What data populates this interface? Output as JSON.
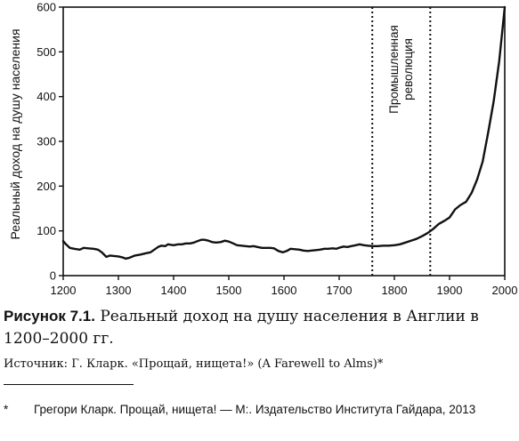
{
  "chart_data": {
    "type": "line",
    "title": "",
    "xlabel": "",
    "ylabel": "Реальный доход на душу населения",
    "xlim": [
      1200,
      2000
    ],
    "ylim": [
      0,
      600
    ],
    "xticks": [
      "1200",
      "1300",
      "1400",
      "1500",
      "1600",
      "1700",
      "1800",
      "1900",
      "2000"
    ],
    "yticks": [
      "0",
      "100",
      "200",
      "300",
      "400",
      "500",
      "600"
    ],
    "grid": false,
    "annotations": [
      {
        "text": "Промышленная революция",
        "x_start": 1760,
        "x_end": 1865
      }
    ],
    "series": [
      {
        "x": [
          1200,
          1205,
          1212,
          1220,
          1230,
          1237,
          1245,
          1255,
          1263,
          1270,
          1278,
          1285,
          1292,
          1300,
          1307,
          1313,
          1320,
          1330,
          1340,
          1350,
          1358,
          1365,
          1372,
          1378,
          1385,
          1390,
          1395,
          1400,
          1408,
          1415,
          1422,
          1430,
          1437,
          1443,
          1450,
          1456,
          1463,
          1470,
          1477,
          1485,
          1493,
          1500,
          1508,
          1515,
          1523,
          1530,
          1538,
          1545,
          1552,
          1560,
          1568,
          1575,
          1582,
          1590,
          1598,
          1605,
          1612,
          1620,
          1628,
          1635,
          1643,
          1650,
          1658,
          1665,
          1673,
          1680,
          1688,
          1695,
          1702,
          1708,
          1715,
          1722,
          1730,
          1737,
          1745,
          1752,
          1760,
          1770,
          1780,
          1790,
          1800,
          1810,
          1820,
          1830,
          1840,
          1850,
          1860,
          1870,
          1880,
          1890,
          1900,
          1910,
          1920,
          1930,
          1940,
          1950,
          1960,
          1970,
          1980,
          1990,
          2000
        ],
        "values": [
          77,
          70,
          62,
          60,
          58,
          62,
          61,
          60,
          58,
          52,
          42,
          45,
          44,
          43,
          41,
          38,
          40,
          45,
          47,
          50,
          52,
          58,
          64,
          67,
          66,
          70,
          69,
          68,
          70,
          70,
          72,
          72,
          74,
          77,
          80,
          80,
          78,
          75,
          74,
          75,
          78,
          76,
          72,
          68,
          67,
          66,
          65,
          66,
          64,
          62,
          62,
          62,
          61,
          55,
          52,
          55,
          60,
          59,
          58,
          56,
          55,
          56,
          57,
          58,
          60,
          60,
          61,
          60,
          63,
          65,
          64,
          66,
          68,
          70,
          68,
          67,
          66,
          66,
          67,
          67,
          68,
          70,
          74,
          78,
          82,
          88,
          95,
          104,
          115,
          122,
          130,
          148,
          158,
          165,
          185,
          215,
          255,
          320,
          390,
          480,
          600
        ]
      }
    ]
  },
  "caption": {
    "label": "Рисунок 7.1.",
    "text": "Реальный доход на душу населения в Англии в 1200–2000 гг."
  },
  "source": "Источник: Г. Кларк. «Прощай, нищета!» (A Farewell to Alms)*",
  "footnote": {
    "mark": "*",
    "text": "Грегори Кларк. Прощай, нищета! — М:. Издательство Института Гайдара, 2013"
  }
}
